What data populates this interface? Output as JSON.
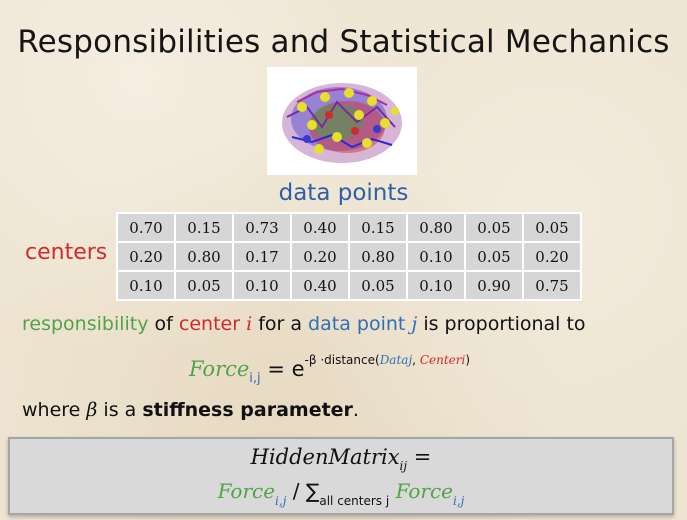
{
  "slide": {
    "title": "Responsibilities and Statistical Mechanics",
    "image_label": "data points",
    "row_label": "centers",
    "matrix": [
      [
        "0.70",
        "0.15",
        "0.73",
        "0.40",
        "0.15",
        "0.80",
        "0.05",
        "0.05"
      ],
      [
        "0.20",
        "0.80",
        "0.17",
        "0.20",
        "0.80",
        "0.10",
        "0.05",
        "0.20"
      ],
      [
        "0.10",
        "0.05",
        "0.10",
        "0.40",
        "0.05",
        "0.10",
        "0.90",
        "0.75"
      ]
    ],
    "statement": {
      "word1": "responsibility",
      "of": " of ",
      "center": "center",
      "i": "i",
      "for_a": " for a ",
      "data_point": "data point",
      "j": "j",
      "rest": " is proportional to"
    },
    "formula": {
      "force": "Force",
      "sub": "i,j",
      "eq": " = e",
      "exp_prefix": "-β ·distance(",
      "exp_data": "Dataj",
      "exp_sep": ", ",
      "exp_center": "Centeri",
      "exp_close": ")"
    },
    "where": {
      "prefix": "where ",
      "beta": "β",
      "middle": "  is a ",
      "bold": "stiffness parameter",
      "end": "."
    },
    "box": {
      "hidden": "HiddenMatrix",
      "hidden_sub": "ij",
      "eq": " =",
      "force": "Force",
      "force_sub": "i,j",
      "slash": " / ∑",
      "sum_sub": "all centers j",
      "force2": "Force",
      "force2_sub": "i,j"
    }
  },
  "colors": {
    "green": "#52a348",
    "red": "#d12a2a",
    "blue": "#2f6fb7"
  }
}
